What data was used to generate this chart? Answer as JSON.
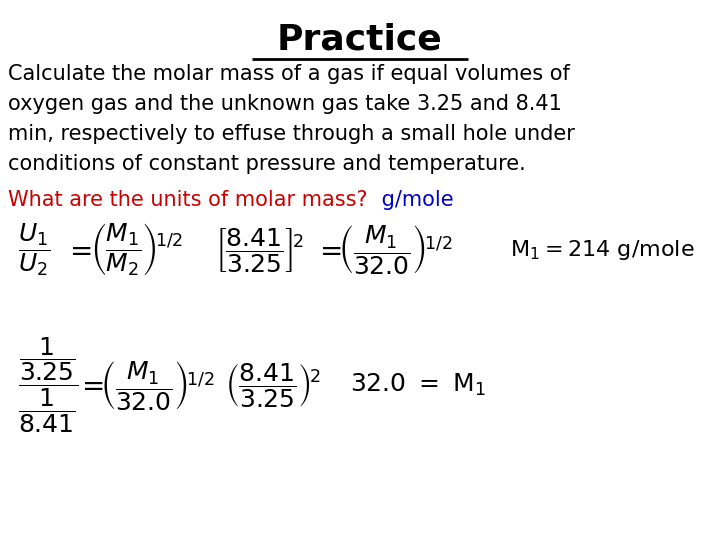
{
  "title": "Practice",
  "background_color": "#ffffff",
  "para_lines": [
    "Calculate the molar mass of a gas if equal volumes of",
    "oxygen gas and the unknown gas take 3.25 and 8.41",
    "min, respectively to effuse through a small hole under",
    "conditions of constant pressure and temperature."
  ],
  "question_red": "What are the units of molar mass?",
  "question_answer": " g/mole",
  "text_color": "#000000",
  "red_color": "#cc0000",
  "blue_color": "#0000cc",
  "title_fontsize": 26,
  "body_fontsize": 15,
  "eq_fontsize": 18
}
